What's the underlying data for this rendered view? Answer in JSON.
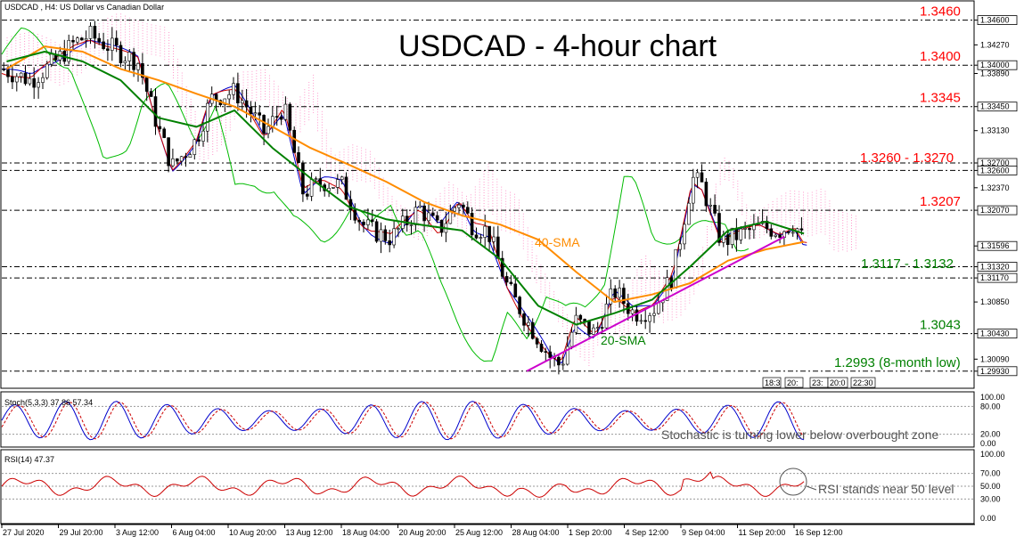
{
  "header": {
    "instrument": "USDCAD , H4:  US Dollar vs Canadian Dollar",
    "chart_title": "USDCAD - 4-hour chart"
  },
  "stoch_panel": {
    "label": "Stoch(5,3,3) 37.86 57.34",
    "annotation": "Stochastic is turning lower below overbought zone",
    "ticks": [
      "100.00",
      "80.00",
      "20.00",
      "0.00"
    ]
  },
  "rsi_panel": {
    "label": "RSI(14) 47.37",
    "annotation": "RSI stands near 50 level",
    "ticks": [
      "100.00",
      "70.00",
      "50.00",
      "30.00",
      "0.00"
    ]
  },
  "annotations": {
    "sma40": "40-SMA",
    "sma20": "20-SMA"
  },
  "time_labels": [
    "27 Jul 2020",
    "29 Jul 20:00",
    "3 Aug 12:00",
    "6 Aug 04:00",
    "10 Aug 20:00",
    "13 Aug 12:00",
    "18 Aug 04:00",
    "20 Aug 20:00",
    "25 Aug 12:00",
    "28 Aug 04:00",
    "1 Sep 20:00",
    "4 Sep 12:00",
    "9 Sep 04:00",
    "11 Sep 20:00",
    "16 Sep 12:00"
  ],
  "mini_labels": [
    "18:3",
    "20:",
    "23:",
    "20:0",
    "22:30"
  ],
  "colors": {
    "level_red": "#ff0000",
    "level_green": "#008000",
    "sma40": "#ff8c00",
    "sma20": "#008000",
    "trendline": "#cc00cc",
    "cloud": "#ff99cc",
    "stoch_main": "#0000cc",
    "stoch_signal": "#cc0000",
    "rsi": "#cc0000"
  },
  "chart_data": {
    "type": "line",
    "title": "USDCAD - 4-hour chart",
    "ylim": [
      1.2975,
      1.3482
    ],
    "price_axis_ticks": [
      "1.34600",
      "1.34270",
      "1.34000",
      "1.33890",
      "1.33450",
      "1.33130",
      "1.32700",
      "1.32600",
      "1.32370",
      "1.32070",
      "1.31596",
      "1.31320",
      "1.31170",
      "1.30850",
      "1.30430",
      "1.30090",
      "1.29930"
    ],
    "levels": [
      {
        "label": "1.3460",
        "value": 1.346,
        "color": "red"
      },
      {
        "label": "1.3400",
        "value": 1.34,
        "color": "red"
      },
      {
        "label": "1.3345",
        "value": 1.3345,
        "color": "red"
      },
      {
        "label": "1.3260 - 1.3270",
        "value": 1.3265,
        "color": "red"
      },
      {
        "label": "1.3207",
        "value": 1.3207,
        "color": "red"
      },
      {
        "label": "1.3117 - 1.3132",
        "value": 1.31245,
        "color": "green"
      },
      {
        "label": "1.3043",
        "value": 1.3043,
        "color": "green"
      },
      {
        "label": "1.2993 (8-month low)",
        "value": 1.2993,
        "color": "green"
      }
    ],
    "dashed_lines": [
      1.346,
      1.34,
      1.3345,
      1.327,
      1.326,
      1.3207,
      1.3132,
      1.3117,
      1.3043,
      1.2993
    ],
    "series": [
      {
        "name": "40-SMA",
        "values": [
          1.3395,
          1.3425,
          1.3418,
          1.3395,
          1.338,
          1.3362,
          1.3345,
          1.3318,
          1.329,
          1.3268,
          1.3245,
          1.3218,
          1.32,
          1.3188,
          1.3168,
          1.3125,
          1.3085,
          1.3095,
          1.311,
          1.314,
          1.3155,
          1.3165
        ]
      },
      {
        "name": "20-SMA",
        "values": [
          1.3405,
          1.3418,
          1.3405,
          1.338,
          1.333,
          1.3318,
          1.334,
          1.329,
          1.325,
          1.3212,
          1.3195,
          1.3187,
          1.318,
          1.3142,
          1.308,
          1.3055,
          1.307,
          1.3088,
          1.3132,
          1.318,
          1.3192,
          1.3176
        ]
      }
    ],
    "trendline": {
      "x": [
        0.54,
        0.805
      ],
      "y": [
        1.2993,
        1.3172
      ]
    },
    "stochastic": {
      "k": 37.86,
      "d": 57.34
    },
    "rsi": {
      "value": 47.37
    }
  }
}
